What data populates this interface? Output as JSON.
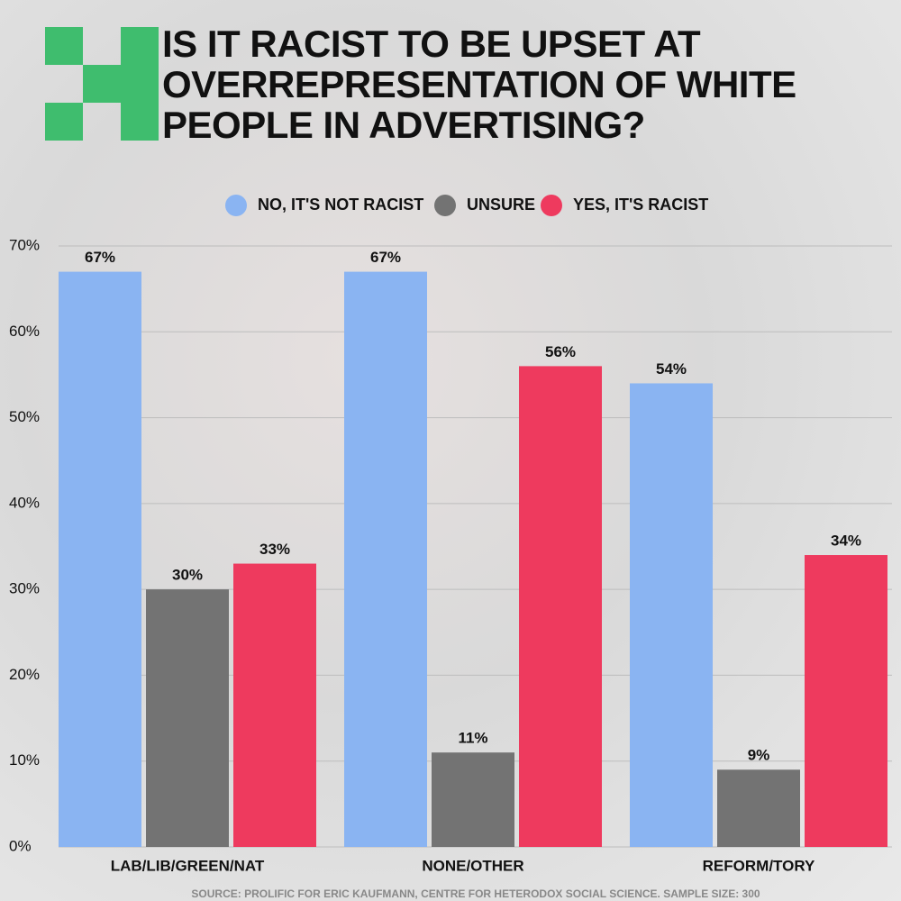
{
  "chart_data": {
    "type": "bar",
    "title": "IS IT RACIST TO BE UPSET AT OVERREPRESENTATION OF WHITE PEOPLE IN ADVERTISING?",
    "categories": [
      "LAB/LIB/GREEN/NAT",
      "NONE/OTHER",
      "REFORM/TORY"
    ],
    "series": [
      {
        "name": "NO, IT'S NOT RACIST",
        "color": "#8ab4f2",
        "values": [
          67,
          67,
          54
        ],
        "value_labels": [
          "67%",
          "67%",
          "54%"
        ]
      },
      {
        "name": "UNSURE",
        "color": "#737373",
        "values": [
          30,
          11,
          9
        ],
        "value_labels": [
          "30%",
          "11%",
          "9%"
        ]
      },
      {
        "name": "YES, IT'S RACIST",
        "color": "#ee3a5e",
        "values": [
          33,
          56,
          34
        ],
        "value_labels": [
          "33%",
          "56%",
          "34%"
        ]
      }
    ],
    "ylim": [
      0,
      70
    ],
    "yticks": [
      {
        "value": 0,
        "label": "0%"
      },
      {
        "value": 10,
        "label": "10%"
      },
      {
        "value": 20,
        "label": "20%"
      },
      {
        "value": 30,
        "label": "30%"
      },
      {
        "value": 40,
        "label": "40%"
      },
      {
        "value": 50,
        "label": "50%"
      },
      {
        "value": 60,
        "label": "60%"
      },
      {
        "value": 70,
        "label": "70%"
      }
    ],
    "grid": true,
    "legend": "top",
    "source": "SOURCE: PROLIFIC FOR ERIC KAUFMANN, CENTRE FOR HETERODOX SOCIAL SCIENCE. SAMPLE SIZE: 300"
  }
}
